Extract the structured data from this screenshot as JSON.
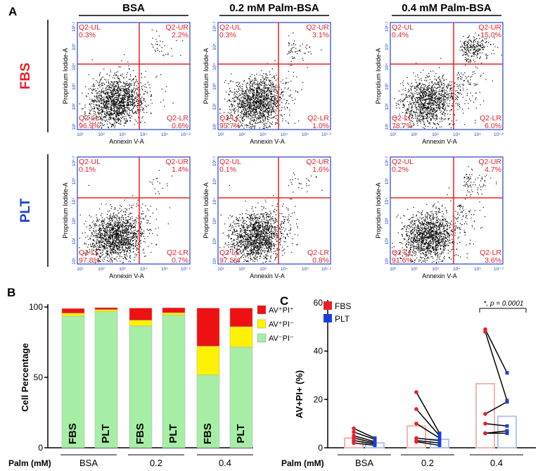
{
  "panel_labels": {
    "a": "A",
    "b": "B",
    "c": "C"
  },
  "columns": [
    "BSA",
    "0.2 mM Palm-BSA",
    "0.4 mM Palm-BSA"
  ],
  "rows": [
    "FBS",
    "PLT"
  ],
  "colors": {
    "fbs": "#e8202a",
    "plt": "#1a3fd6",
    "green": "#a6eea6",
    "yellow": "#fff200",
    "red": "#ee1111",
    "axis": "#2244cc",
    "gate": "#e8202a"
  },
  "flow": {
    "x_label": "Annexin V-A",
    "y_label": "Propridium Iodide-A",
    "x_ticks": [
      "10¹",
      "10²",
      "10³",
      "10⁴",
      "10⁵",
      "10⁷·²"
    ],
    "y_ticks": [
      "10¹",
      "10²",
      "10³",
      "10⁴",
      "10⁵",
      "10⁶·²"
    ],
    "plots": [
      {
        "row": "FBS",
        "col": "BSA",
        "ul": "0.3%",
        "ur": "2.2%",
        "ll": "96.9%",
        "lr": "0.6%"
      },
      {
        "row": "FBS",
        "col": "0.2 mM Palm-BSA",
        "ul": "0.3%",
        "ur": "3.1%",
        "ll": "95.7%",
        "lr": "1.0%"
      },
      {
        "row": "FBS",
        "col": "0.4 mM Palm-BSA",
        "ul": "0.4%",
        "ur": "15.0%",
        "ll": "78.7%",
        "lr": "6.0%"
      },
      {
        "row": "PLT",
        "col": "BSA",
        "ul": "0.1%",
        "ur": "1.4%",
        "ll": "97.8%",
        "lr": "0.7%"
      },
      {
        "row": "PLT",
        "col": "0.2 mM Palm-BSA",
        "ul": "0.1%",
        "ur": "1.6%",
        "ll": "97.5%",
        "lr": "0.8%"
      },
      {
        "row": "PLT",
        "col": "0.4 mM Palm-BSA",
        "ul": "0.2%",
        "ur": "4.7%",
        "ll": "91.6%",
        "lr": "3.6%"
      }
    ],
    "gate_names": {
      "ul": "Q2-UL",
      "ur": "Q2-UR",
      "ll": "Q2-LL",
      "lr": "Q2-LR"
    }
  },
  "chart_data": [
    {
      "type": "bar",
      "stacked": true,
      "ylabel": "Cell Percentage",
      "xlabel": "Palm (mM)",
      "ylim": [
        0,
        100
      ],
      "yticks": [
        0,
        50,
        100
      ],
      "categories": [
        "FBS",
        "PLT",
        "FBS",
        "PLT",
        "FBS",
        "PLT"
      ],
      "groups": [
        "BSA",
        "0.2",
        "0.4"
      ],
      "series": [
        {
          "name": "AV⁻PI⁻",
          "values": [
            93.5,
            96.6,
            86.5,
            94.2,
            51.7,
            71.5
          ]
        },
        {
          "name": "AV⁺PI⁻",
          "values": [
            2.1,
            1.5,
            4.1,
            1.7,
            20.5,
            14.5
          ]
        },
        {
          "name": "AV⁺PI⁺",
          "values": [
            3.3,
            1.4,
            8.6,
            3.5,
            27.0,
            13.2
          ]
        }
      ],
      "legend": [
        "AV⁺PI⁺",
        "AV⁺PI⁻",
        "AV⁻PI⁻"
      ]
    },
    {
      "type": "bar",
      "ylabel": "AV+PI+ (%)",
      "xlabel": "Palm (mM)",
      "ylim": [
        0,
        60
      ],
      "yticks": [
        0,
        20,
        40,
        60
      ],
      "groups": [
        "BSA",
        "0.2",
        "0.4"
      ],
      "legend": [
        "FBS",
        "PLT"
      ],
      "annotation": "*, p = 0.0001",
      "series": [
        {
          "name": "FBS",
          "means": [
            4.0,
            9.0,
            26.5
          ]
        },
        {
          "name": "PLT",
          "means": [
            2.0,
            3.5,
            13.0
          ]
        }
      ],
      "pairs": [
        [
          [
            8.0,
            4.0
          ],
          [
            6.5,
            3.5
          ],
          [
            5.0,
            2.5
          ],
          [
            4.0,
            2.0
          ],
          [
            3.0,
            1.5
          ],
          [
            2.0,
            1.0
          ]
        ],
        [
          [
            23.0,
            6.0
          ],
          [
            16.0,
            5.0
          ],
          [
            10.0,
            4.0
          ],
          [
            4.0,
            3.0
          ],
          [
            3.0,
            2.0
          ],
          [
            2.5,
            1.0
          ]
        ],
        [
          [
            49.0,
            31.0
          ],
          [
            48.0,
            19.5
          ],
          [
            14.0,
            19.0
          ],
          [
            10.0,
            9.0
          ],
          [
            6.0,
            7.0
          ],
          [
            6.0,
            6.0
          ]
        ]
      ]
    }
  ]
}
